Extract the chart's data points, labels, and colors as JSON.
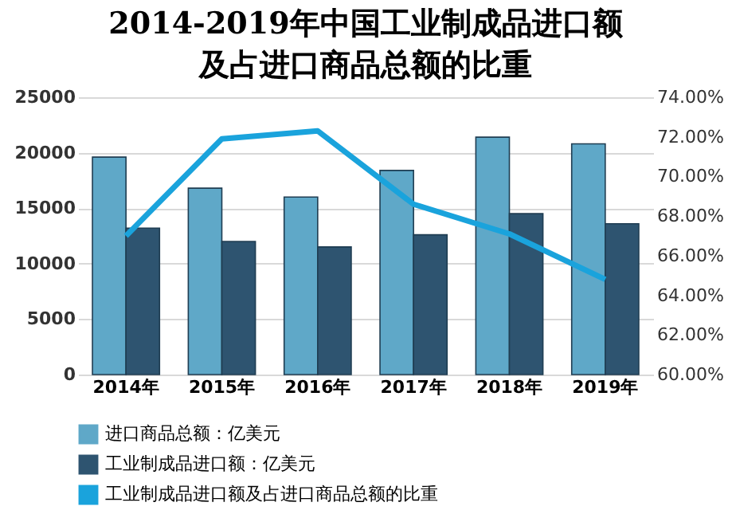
{
  "chart_data": {
    "type": "bar",
    "title": "2014-2019年中国工业制成品进口额及占进口商品总额的比重",
    "categories": [
      "2014年",
      "2015年",
      "2016年",
      "2017年",
      "2018年",
      "2019年"
    ],
    "series": [
      {
        "name": "进口商品总额：亿美元",
        "color": "#5fa8c8",
        "values": [
          19600,
          16800,
          16000,
          18400,
          21400,
          20800
        ]
      },
      {
        "name": "工业制成品进口额：亿美元",
        "color": "#2e5470",
        "values": [
          13200,
          12000,
          11500,
          12600,
          14500,
          13600
        ]
      },
      {
        "name": "工业制成品进口额及占进口商品总额的比重",
        "type": "line",
        "axis": "y2",
        "color": "#1aa3dc",
        "values": [
          67.0,
          71.9,
          72.3,
          68.6,
          67.1,
          64.8
        ]
      }
    ],
    "ylim": [
      0,
      25000
    ],
    "yticks": [
      0,
      5000,
      10000,
      15000,
      20000,
      25000
    ],
    "y2lim": [
      60,
      74
    ],
    "y2ticks": [
      {
        "value": 60,
        "label": "60.00%"
      },
      {
        "value": 62,
        "label": "62.00%"
      },
      {
        "value": 64,
        "label": "64.00%"
      },
      {
        "value": 66,
        "label": "66.00%"
      },
      {
        "value": 68,
        "label": "68.00%"
      },
      {
        "value": 70,
        "label": "70.00%"
      },
      {
        "value": 72,
        "label": "72.00%"
      },
      {
        "value": 74,
        "label": "74.00%"
      }
    ],
    "grid": "y",
    "legend": "bottom"
  }
}
